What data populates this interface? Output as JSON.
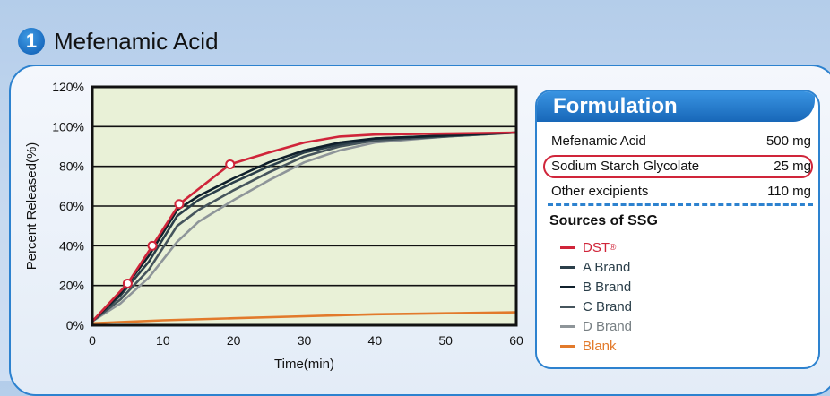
{
  "header": {
    "number": "1",
    "title": "Mefenamic Acid"
  },
  "chart_data": {
    "type": "line",
    "title": "",
    "xlabel": "Time(min)",
    "ylabel": "Percent Released(%)",
    "xlim": [
      0,
      60
    ],
    "ylim": [
      0,
      120
    ],
    "xticks": [
      "0",
      "10",
      "20",
      "30",
      "40",
      "50",
      "60"
    ],
    "yticks": [
      "0%",
      "20%",
      "40%",
      "60%",
      "80%",
      "100%",
      "120%"
    ],
    "grid": "horizontal",
    "series": [
      {
        "name": "DST®",
        "color": "#d0253a",
        "markers": true,
        "x": [
          0,
          5,
          8.5,
          12.3,
          19.5,
          25,
          30,
          35,
          40,
          50,
          60
        ],
        "y": [
          2,
          21,
          40,
          61,
          81,
          87,
          92,
          95,
          96,
          96.5,
          97
        ]
      },
      {
        "name": "A Brand",
        "color": "#2b3f4a",
        "x": [
          0,
          4,
          8,
          12,
          15,
          20,
          25,
          30,
          35,
          40,
          50,
          60
        ],
        "y": [
          2,
          15,
          32,
          55,
          63,
          72,
          80,
          87,
          91,
          94,
          95.5,
          97
        ]
      },
      {
        "name": "B Brand",
        "color": "#10202c",
        "x": [
          0,
          4,
          8,
          12,
          15,
          20,
          25,
          30,
          35,
          40,
          50,
          60
        ],
        "y": [
          2,
          16,
          35,
          58,
          65,
          74,
          82,
          88,
          92,
          94,
          95.5,
          97
        ]
      },
      {
        "name": "C Brand",
        "color": "#46555d",
        "x": [
          0,
          4,
          8,
          12,
          15,
          20,
          25,
          30,
          35,
          40,
          50,
          60
        ],
        "y": [
          2,
          13,
          28,
          50,
          58,
          68,
          77,
          85,
          90,
          93,
          95,
          97
        ]
      },
      {
        "name": "D Brand",
        "color": "#8e9599",
        "x": [
          0,
          4,
          8,
          12,
          15,
          20,
          25,
          30,
          35,
          40,
          50,
          60
        ],
        "y": [
          2,
          11,
          24,
          42,
          52,
          63,
          73,
          82,
          88,
          92,
          95,
          97
        ]
      },
      {
        "name": "Blank",
        "color": "#e27a2b",
        "x": [
          0,
          10,
          20,
          30,
          40,
          50,
          60
        ],
        "y": [
          1,
          2.5,
          3.5,
          4.5,
          5.5,
          6,
          6.5
        ]
      }
    ]
  },
  "formulation": {
    "title": "Formulation",
    "rows": [
      {
        "name": "Mefenamic Acid",
        "amount": "500 mg"
      },
      {
        "name": "Sodium Starch Glycolate",
        "amount": "25 mg",
        "highlighted": true
      },
      {
        "name": "Other excipients",
        "amount": "110 mg"
      }
    ],
    "sources_title": "Sources of SSG",
    "legend": [
      {
        "label": "DST",
        "superscript": "®",
        "color": "#d0253a"
      },
      {
        "label": "A Brand",
        "color": "#2b3f4a"
      },
      {
        "label": "B Brand",
        "color": "#10202c"
      },
      {
        "label": "C Brand",
        "color": "#46555d"
      },
      {
        "label": "D Brand",
        "color": "#8e9599"
      },
      {
        "label": "Blank",
        "color": "#e27a2b"
      }
    ]
  }
}
